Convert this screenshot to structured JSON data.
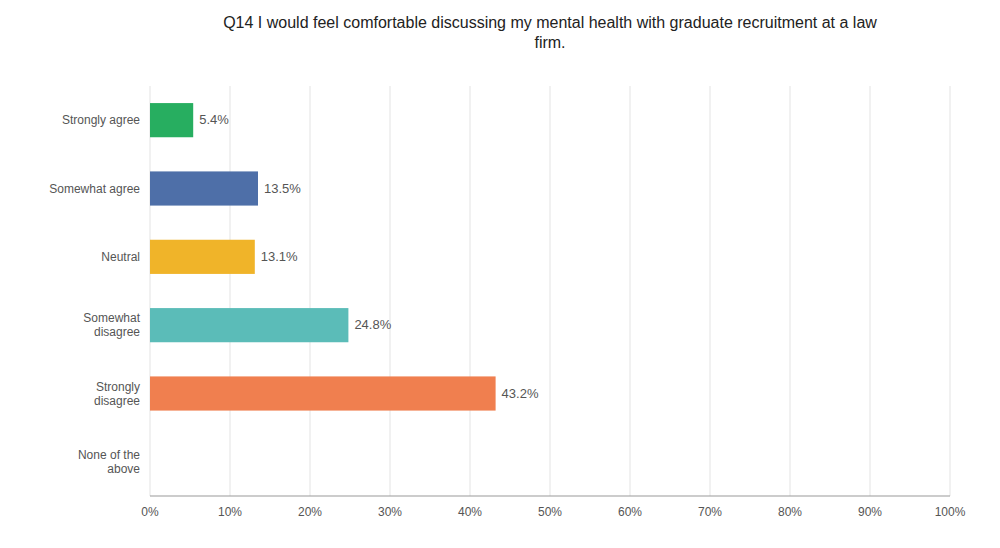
{
  "chart_data": {
    "type": "bar",
    "orientation": "horizontal",
    "title": "Q14 I would feel comfortable discussing my mental health with graduate recruitment at a law\nfirm.",
    "categories": [
      "Strongly agree",
      "Somewhat agree",
      "Neutral",
      "Somewhat\ndisagree",
      "Strongly\ndisagree",
      "None of the\nabove"
    ],
    "values": [
      5.4,
      13.5,
      13.1,
      24.8,
      43.2,
      0.0
    ],
    "value_labels": [
      "5.4%",
      "13.5%",
      "13.1%",
      "24.8%",
      "43.2%",
      null
    ],
    "data_labels": true,
    "colors": [
      "#27ae60",
      "#4e6fa8",
      "#f0b429",
      "#5bbcb8",
      "#f07f4f",
      "#ffffff"
    ],
    "xlim": [
      0,
      100
    ],
    "xticks": [
      {
        "value": 0,
        "label": "0%"
      },
      {
        "value": 10,
        "label": "10%"
      },
      {
        "value": 20,
        "label": "20%"
      },
      {
        "value": 30,
        "label": "30%"
      },
      {
        "value": 40,
        "label": "40%"
      },
      {
        "value": 50,
        "label": "50%"
      },
      {
        "value": 60,
        "label": "60%"
      },
      {
        "value": 70,
        "label": "70%"
      },
      {
        "value": 80,
        "label": "80%"
      },
      {
        "value": 90,
        "label": "90%"
      },
      {
        "value": 100,
        "label": "100%"
      }
    ],
    "grid": true
  }
}
